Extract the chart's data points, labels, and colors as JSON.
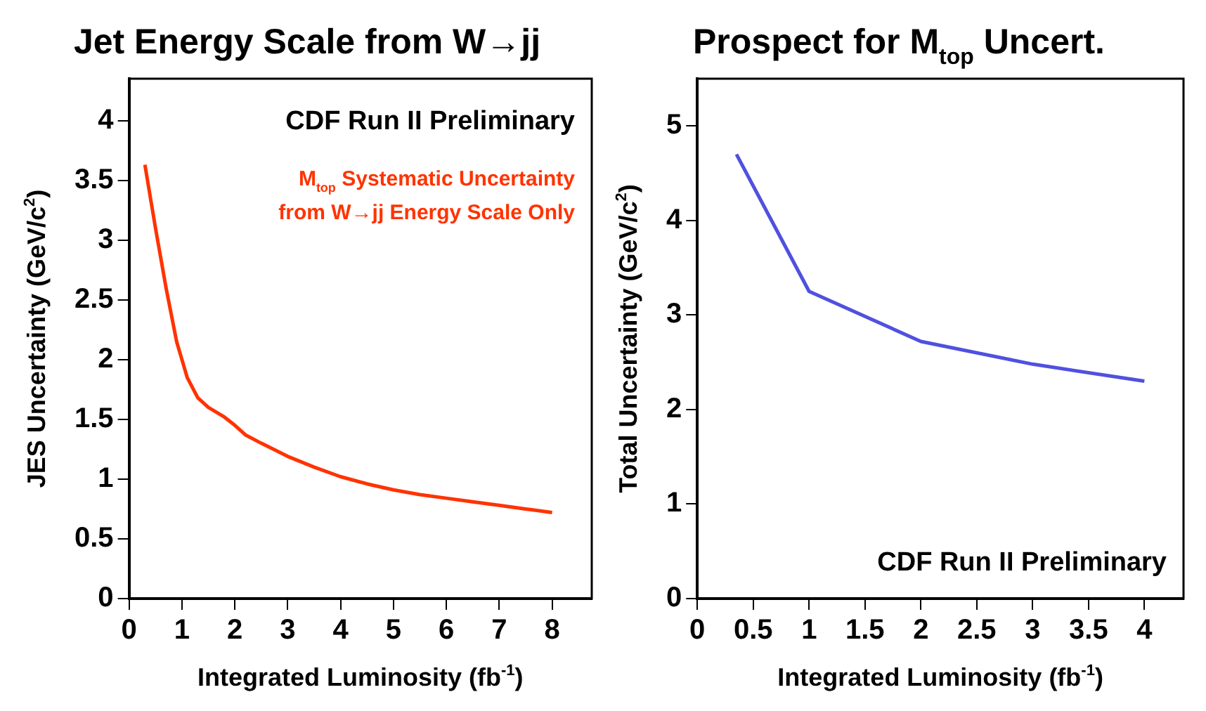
{
  "chart_data": [
    {
      "type": "line",
      "title": "Jet Energy Scale from W→jj",
      "xlabel": "Integrated Luminosity (fb$^{-1}$)",
      "ylabel": "JES Uncertainty (GeV/c$^{2}$)",
      "annotations": [
        "CDF Run II Preliminary",
        "M$_{top}$ Systematic Uncertainty\nfrom W→jj Energy Scale Only"
      ],
      "xlim": [
        0,
        8.75
      ],
      "ylim": [
        0,
        4.35
      ],
      "xticks": [
        0,
        1,
        2,
        3,
        4,
        5,
        6,
        7,
        8
      ],
      "yticks": [
        0,
        0.5,
        1,
        1.5,
        2,
        2.5,
        3,
        3.5,
        4
      ],
      "grid": false,
      "legend": false,
      "marker": "none",
      "line_style": "solid",
      "series": [
        {
          "color": "#ff3300",
          "x": [
            0.3,
            0.5,
            0.7,
            0.9,
            1.1,
            1.3,
            1.5,
            1.8,
            2.0,
            2.2,
            2.5,
            3,
            3.5,
            4,
            4.5,
            5,
            5.5,
            6,
            6.5,
            7,
            7.5,
            8
          ],
          "values": [
            3.63,
            3.1,
            2.6,
            2.15,
            1.85,
            1.68,
            1.6,
            1.52,
            1.45,
            1.37,
            1.3,
            1.19,
            1.1,
            1.02,
            0.96,
            0.91,
            0.87,
            0.84,
            0.81,
            0.78,
            0.75,
            0.72
          ]
        }
      ]
    },
    {
      "type": "line",
      "title": "Prospect for M$_{top}$ Uncert.",
      "xlabel": "Integrated Luminosity (fb$^{-1}$)",
      "ylabel": "Total Uncertainty (GeV/c$^{2}$)",
      "annotations": [
        "CDF Run II Preliminary"
      ],
      "xlim": [
        0,
        4.35
      ],
      "ylim": [
        0,
        5.5
      ],
      "xticks": [
        0,
        0.5,
        1,
        1.5,
        2,
        2.5,
        3,
        3.5,
        4
      ],
      "yticks": [
        0,
        1,
        2,
        3,
        4,
        5
      ],
      "grid": false,
      "legend": false,
      "marker": "none",
      "line_style": "solid",
      "series": [
        {
          "color": "#5050e0",
          "x": [
            0.35,
            1,
            2,
            3,
            4
          ],
          "values": [
            4.7,
            3.25,
            2.72,
            2.48,
            2.3
          ]
        }
      ]
    }
  ]
}
